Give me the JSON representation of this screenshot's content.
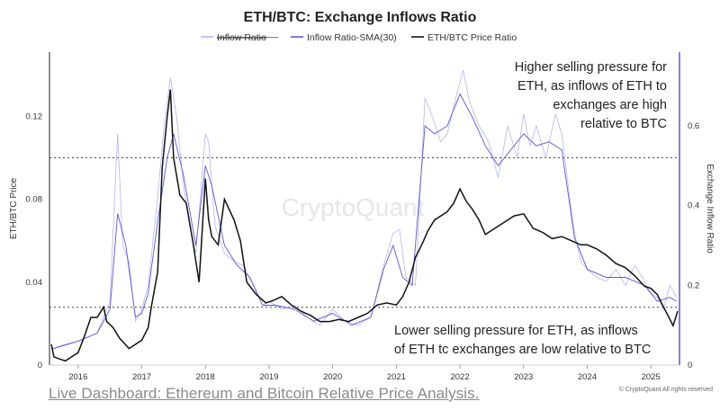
{
  "chart_data": {
    "type": "line",
    "title": "ETH/BTC: Exchange Inflows Ratio",
    "ylabel_left": "ETH/BTC Price",
    "ylabel_right": "Exchange Inflow Ratio",
    "legend_position": "top-center",
    "xlim": [
      2015.55,
      2025.45
    ],
    "ylim_left": [
      0,
      0.151
    ],
    "ylim_right": [
      0,
      0.785
    ],
    "x_ticks": [
      2016,
      2017,
      2018,
      2019,
      2020,
      2021,
      2022,
      2023,
      2024,
      2025
    ],
    "y_ticks_left": [
      {
        "value": 0,
        "label": "0"
      },
      {
        "value": 0.04,
        "label": "0.04"
      },
      {
        "value": 0.08,
        "label": "0.08"
      },
      {
        "value": 0.12,
        "label": "0.12"
      }
    ],
    "y_ticks_right": [
      {
        "value": 0,
        "label": "0"
      },
      {
        "value": 0.2,
        "label": "0.2"
      },
      {
        "value": 0.4,
        "label": "0.4"
      },
      {
        "value": 0.6,
        "label": "0.6"
      }
    ],
    "reference_lines_right_axis": [
      0.52,
      0.145
    ],
    "colors": {
      "inflow_ratio": "#b7b3f0",
      "inflow_sma": "#5b55e0",
      "price": "#111111",
      "reference": "#444444",
      "right_axis": "#5b55e0"
    },
    "series": [
      {
        "name": "Inflow Ratio",
        "axis": "right",
        "x": [
          2015.58,
          2015.75,
          2016.0,
          2016.3,
          2016.5,
          2016.58,
          2016.62,
          2016.7,
          2016.8,
          2016.9,
          2017.0,
          2017.1,
          2017.25,
          2017.35,
          2017.45,
          2017.55,
          2017.65,
          2017.75,
          2017.85,
          2018.0,
          2018.05,
          2018.15,
          2018.3,
          2018.45,
          2018.6,
          2018.75,
          2018.9,
          2019.0,
          2019.2,
          2019.4,
          2019.6,
          2019.8,
          2020.0,
          2020.2,
          2020.4,
          2020.6,
          2020.8,
          2020.95,
          2021.05,
          2021.15,
          2021.3,
          2021.45,
          2021.55,
          2021.7,
          2021.8,
          2021.95,
          2022.05,
          2022.15,
          2022.3,
          2022.45,
          2022.6,
          2022.75,
          2022.9,
          2023.0,
          2023.1,
          2023.2,
          2023.35,
          2023.5,
          2023.6,
          2023.7,
          2023.8,
          2023.9,
          2024.0,
          2024.15,
          2024.3,
          2024.45,
          2024.6,
          2024.75,
          2024.9,
          2025.0,
          2025.1,
          2025.2,
          2025.3,
          2025.4
        ],
        "values": [
          0.04,
          0.05,
          0.06,
          0.08,
          0.16,
          0.44,
          0.58,
          0.3,
          0.26,
          0.11,
          0.14,
          0.2,
          0.42,
          0.6,
          0.72,
          0.62,
          0.46,
          0.35,
          0.28,
          0.58,
          0.56,
          0.35,
          0.28,
          0.26,
          0.25,
          0.2,
          0.15,
          0.16,
          0.14,
          0.15,
          0.12,
          0.1,
          0.14,
          0.11,
          0.1,
          0.12,
          0.25,
          0.33,
          0.34,
          0.22,
          0.2,
          0.67,
          0.63,
          0.56,
          0.58,
          0.68,
          0.74,
          0.66,
          0.6,
          0.56,
          0.47,
          0.6,
          0.52,
          0.63,
          0.55,
          0.6,
          0.52,
          0.63,
          0.58,
          0.45,
          0.33,
          0.26,
          0.24,
          0.22,
          0.21,
          0.24,
          0.2,
          0.25,
          0.21,
          0.18,
          0.17,
          0.14,
          0.2,
          0.17
        ]
      },
      {
        "name": "Inflow Ratio-SMA(30)",
        "axis": "right",
        "x": [
          2015.58,
          2015.8,
          2016.0,
          2016.3,
          2016.5,
          2016.62,
          2016.75,
          2016.9,
          2017.0,
          2017.1,
          2017.25,
          2017.4,
          2017.5,
          2017.65,
          2017.85,
          2018.0,
          2018.1,
          2018.3,
          2018.5,
          2018.7,
          2018.9,
          2019.1,
          2019.4,
          2019.7,
          2020.0,
          2020.3,
          2020.6,
          2020.8,
          2020.95,
          2021.1,
          2021.25,
          2021.45,
          2021.6,
          2021.8,
          2022.0,
          2022.2,
          2022.4,
          2022.6,
          2022.8,
          2023.0,
          2023.2,
          2023.4,
          2023.6,
          2023.8,
          2024.0,
          2024.3,
          2024.6,
          2024.9,
          2025.1,
          2025.3,
          2025.4
        ],
        "values": [
          0.04,
          0.05,
          0.06,
          0.08,
          0.14,
          0.38,
          0.3,
          0.12,
          0.13,
          0.18,
          0.36,
          0.52,
          0.58,
          0.48,
          0.3,
          0.5,
          0.45,
          0.3,
          0.25,
          0.22,
          0.15,
          0.15,
          0.14,
          0.11,
          0.13,
          0.1,
          0.12,
          0.24,
          0.3,
          0.22,
          0.2,
          0.6,
          0.58,
          0.6,
          0.68,
          0.62,
          0.55,
          0.5,
          0.54,
          0.58,
          0.55,
          0.56,
          0.54,
          0.32,
          0.24,
          0.22,
          0.22,
          0.2,
          0.16,
          0.17,
          0.16
        ]
      },
      {
        "name": "ETH/BTC Price Ratio",
        "axis": "left",
        "x": [
          2015.58,
          2015.62,
          2015.7,
          2015.8,
          2015.9,
          2016.0,
          2016.1,
          2016.2,
          2016.3,
          2016.4,
          2016.45,
          2016.55,
          2016.65,
          2016.8,
          2016.9,
          2017.0,
          2017.1,
          2017.15,
          2017.25,
          2017.32,
          2017.4,
          2017.45,
          2017.5,
          2017.6,
          2017.7,
          2017.8,
          2017.9,
          2018.0,
          2018.05,
          2018.1,
          2018.2,
          2018.3,
          2018.45,
          2018.55,
          2018.65,
          2018.8,
          2018.95,
          2019.05,
          2019.2,
          2019.35,
          2019.5,
          2019.65,
          2019.8,
          2019.95,
          2020.1,
          2020.25,
          2020.4,
          2020.55,
          2020.7,
          2020.85,
          2021.0,
          2021.1,
          2021.2,
          2021.3,
          2021.4,
          2021.5,
          2021.6,
          2021.7,
          2021.8,
          2021.9,
          2022.0,
          2022.1,
          2022.2,
          2022.3,
          2022.4,
          2022.55,
          2022.7,
          2022.85,
          2023.0,
          2023.15,
          2023.3,
          2023.45,
          2023.6,
          2023.75,
          2023.9,
          2024.0,
          2024.15,
          2024.3,
          2024.45,
          2024.6,
          2024.75,
          2024.9,
          2025.0,
          2025.1,
          2025.2,
          2025.3,
          2025.35,
          2025.42
        ],
        "values": [
          0.01,
          0.004,
          0.003,
          0.002,
          0.004,
          0.006,
          0.014,
          0.023,
          0.023,
          0.028,
          0.021,
          0.018,
          0.013,
          0.008,
          0.01,
          0.012,
          0.018,
          0.028,
          0.045,
          0.095,
          0.12,
          0.133,
          0.1,
          0.082,
          0.078,
          0.06,
          0.04,
          0.09,
          0.07,
          0.062,
          0.058,
          0.08,
          0.07,
          0.06,
          0.04,
          0.034,
          0.03,
          0.031,
          0.033,
          0.029,
          0.026,
          0.024,
          0.021,
          0.021,
          0.022,
          0.021,
          0.023,
          0.025,
          0.029,
          0.03,
          0.029,
          0.033,
          0.04,
          0.052,
          0.058,
          0.065,
          0.07,
          0.072,
          0.074,
          0.078,
          0.085,
          0.079,
          0.075,
          0.07,
          0.063,
          0.066,
          0.069,
          0.072,
          0.073,
          0.066,
          0.064,
          0.061,
          0.062,
          0.06,
          0.058,
          0.058,
          0.056,
          0.053,
          0.049,
          0.047,
          0.043,
          0.038,
          0.037,
          0.034,
          0.028,
          0.022,
          0.019,
          0.026
        ]
      }
    ],
    "annotations": {
      "top": [
        "Higher selling pressure for",
        "ETH, as inflows of ETH to",
        "exchanges are high",
        "relative to BTC"
      ],
      "bottom": [
        "Lower selling pressure for ETH, as inflows",
        "of ETH tc exchanges are low relative to BTC"
      ]
    },
    "watermark": "CryptoQuant",
    "copyright": "© CryptoQuant All rights reserved"
  },
  "footer_link": "Live Dashboard: Ethereum and Bitcoin Relative Price Analysis."
}
